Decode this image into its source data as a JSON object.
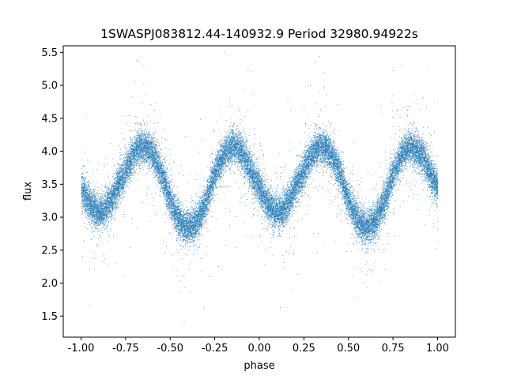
{
  "chart_data": {
    "type": "scatter",
    "title": "1SWASPJ083812.44-140932.9 Period 32980.94922s",
    "xlabel": "phase",
    "ylabel": "flux",
    "xlim": [
      -1.1,
      1.1
    ],
    "ylim": [
      1.18,
      5.6
    ],
    "xticks": [
      "-1.00",
      "-0.75",
      "-0.50",
      "-0.25",
      "0.00",
      "0.25",
      "0.50",
      "0.75",
      "1.00"
    ],
    "xtick_values": [
      -1.0,
      -0.75,
      -0.5,
      -0.25,
      0.0,
      0.25,
      0.5,
      0.75,
      1.0
    ],
    "yticks": [
      "1.5",
      "2.0",
      "2.5",
      "3.0",
      "3.5",
      "4.0",
      "4.5",
      "5.0",
      "5.5"
    ],
    "ytick_values": [
      1.5,
      2.0,
      2.5,
      3.0,
      3.5,
      4.0,
      4.5,
      5.0,
      5.5
    ],
    "grid": false,
    "marker_color": "#1f77b4",
    "series_model": {
      "x_range": [
        -1.0,
        1.0
      ],
      "mean_flux": 3.5,
      "semi_amplitude": 0.55,
      "secondary_depth": 0.12,
      "period_in_phase": 1.0,
      "minima_phase": [
        -0.9,
        -0.4,
        0.1,
        0.6
      ],
      "maxima_phase": [
        -0.65,
        -0.15,
        0.35,
        0.85
      ],
      "deep_minimum_flux": 2.85,
      "shallow_minimum_flux": 3.0,
      "maximum_flux": 4.05,
      "scatter_sigma": 0.13,
      "point_count": 26000
    }
  }
}
